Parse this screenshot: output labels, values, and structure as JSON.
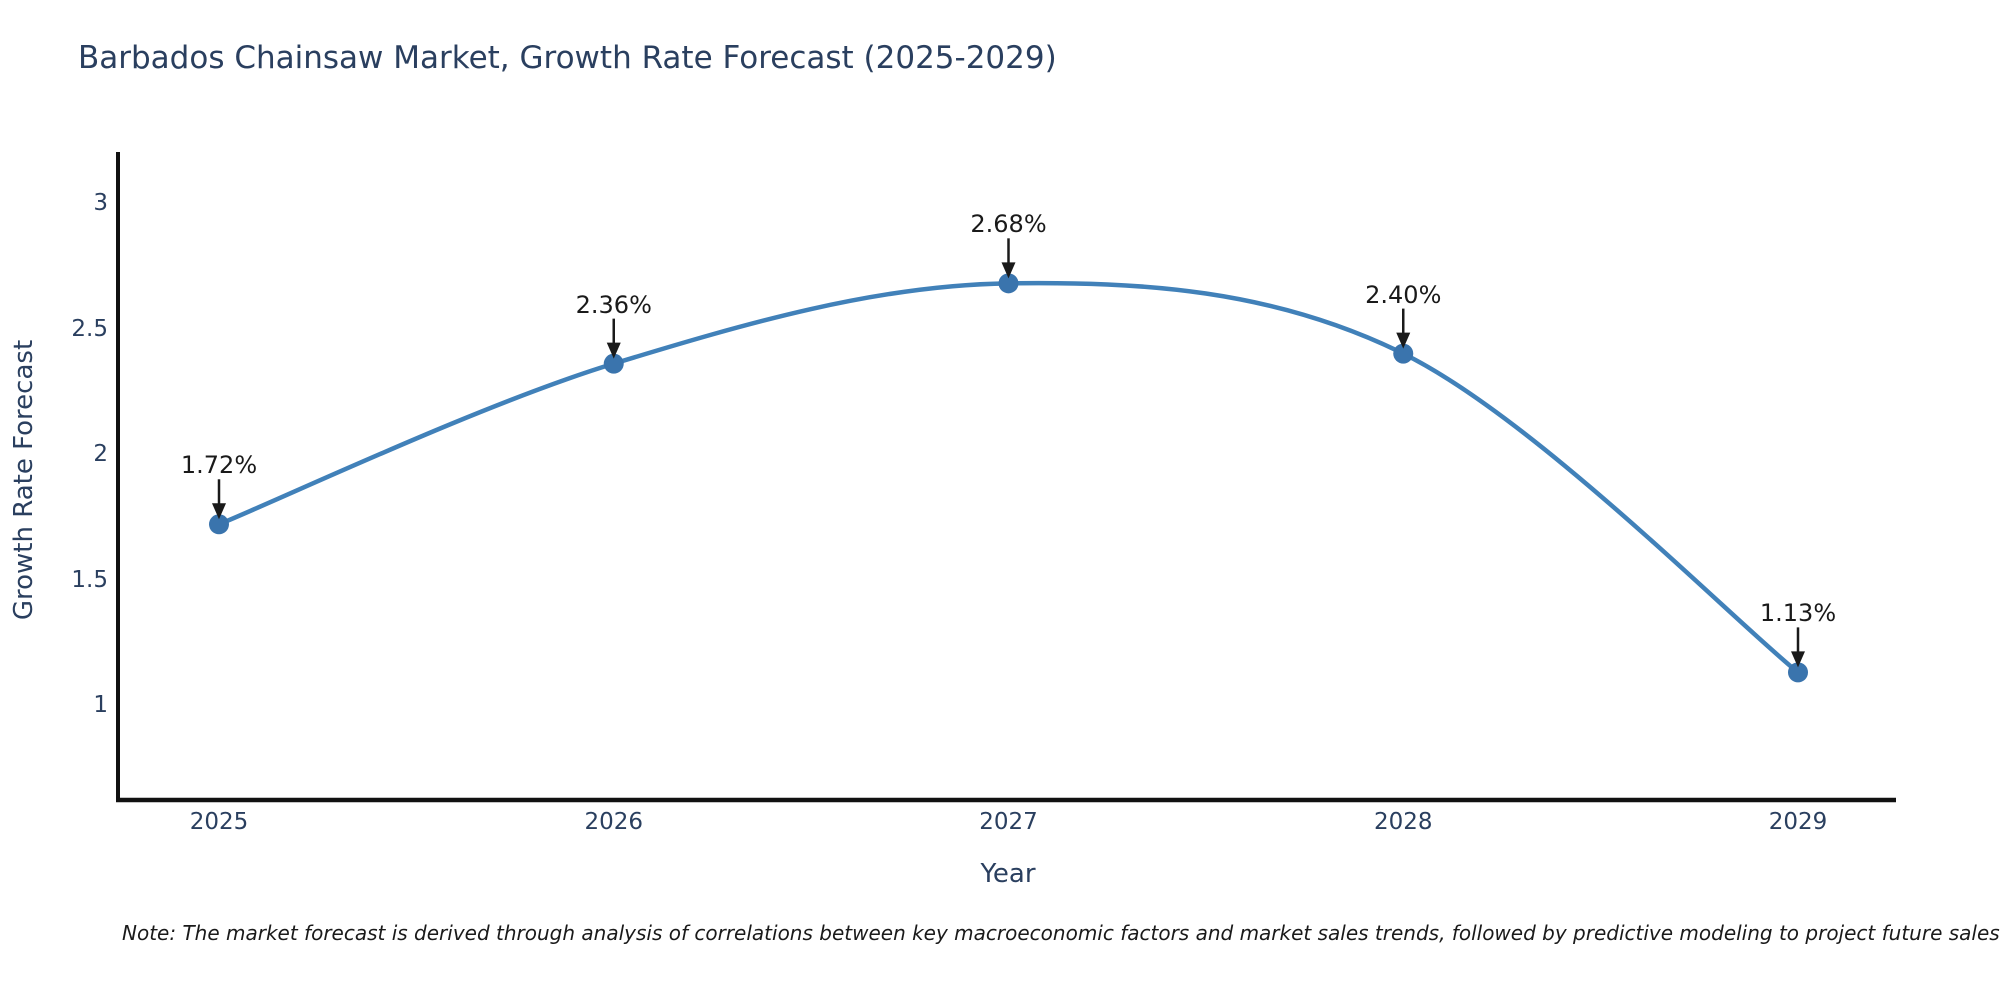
{
  "title": "Barbados Chainsaw Market, Growth Rate Forecast (2025-2029)",
  "note": "Note: The market forecast is derived through analysis of correlations between key macroeconomic factors and market sales trends, followed by predictive modeling to project future sales",
  "chart_data": {
    "type": "line",
    "title": "Barbados Chainsaw Market, Growth Rate Forecast (2025-2029)",
    "xlabel": "Year",
    "ylabel": "Growth Rate Forecast",
    "categories": [
      "2025",
      "2026",
      "2027",
      "2028",
      "2029"
    ],
    "values": [
      1.72,
      2.36,
      2.68,
      2.4,
      1.13
    ],
    "point_labels": [
      "1.72%",
      "2.36%",
      "2.68%",
      "2.40%",
      "1.13%"
    ],
    "y_ticks": [
      "3",
      "2.5",
      "2",
      "1.5",
      "1"
    ],
    "y_tick_values": [
      3,
      2.5,
      2,
      1.5,
      1
    ],
    "ylim": [
      0.62,
      3.2
    ],
    "grid": false,
    "legend_position": "none",
    "line_shape": "spline",
    "colors": {
      "line": "#4181b9",
      "marker": "#3a74ad",
      "axis": "#111111",
      "text": "#2a3f5f",
      "annotation": "#1a1a1a",
      "background": "#ffffff"
    }
  }
}
